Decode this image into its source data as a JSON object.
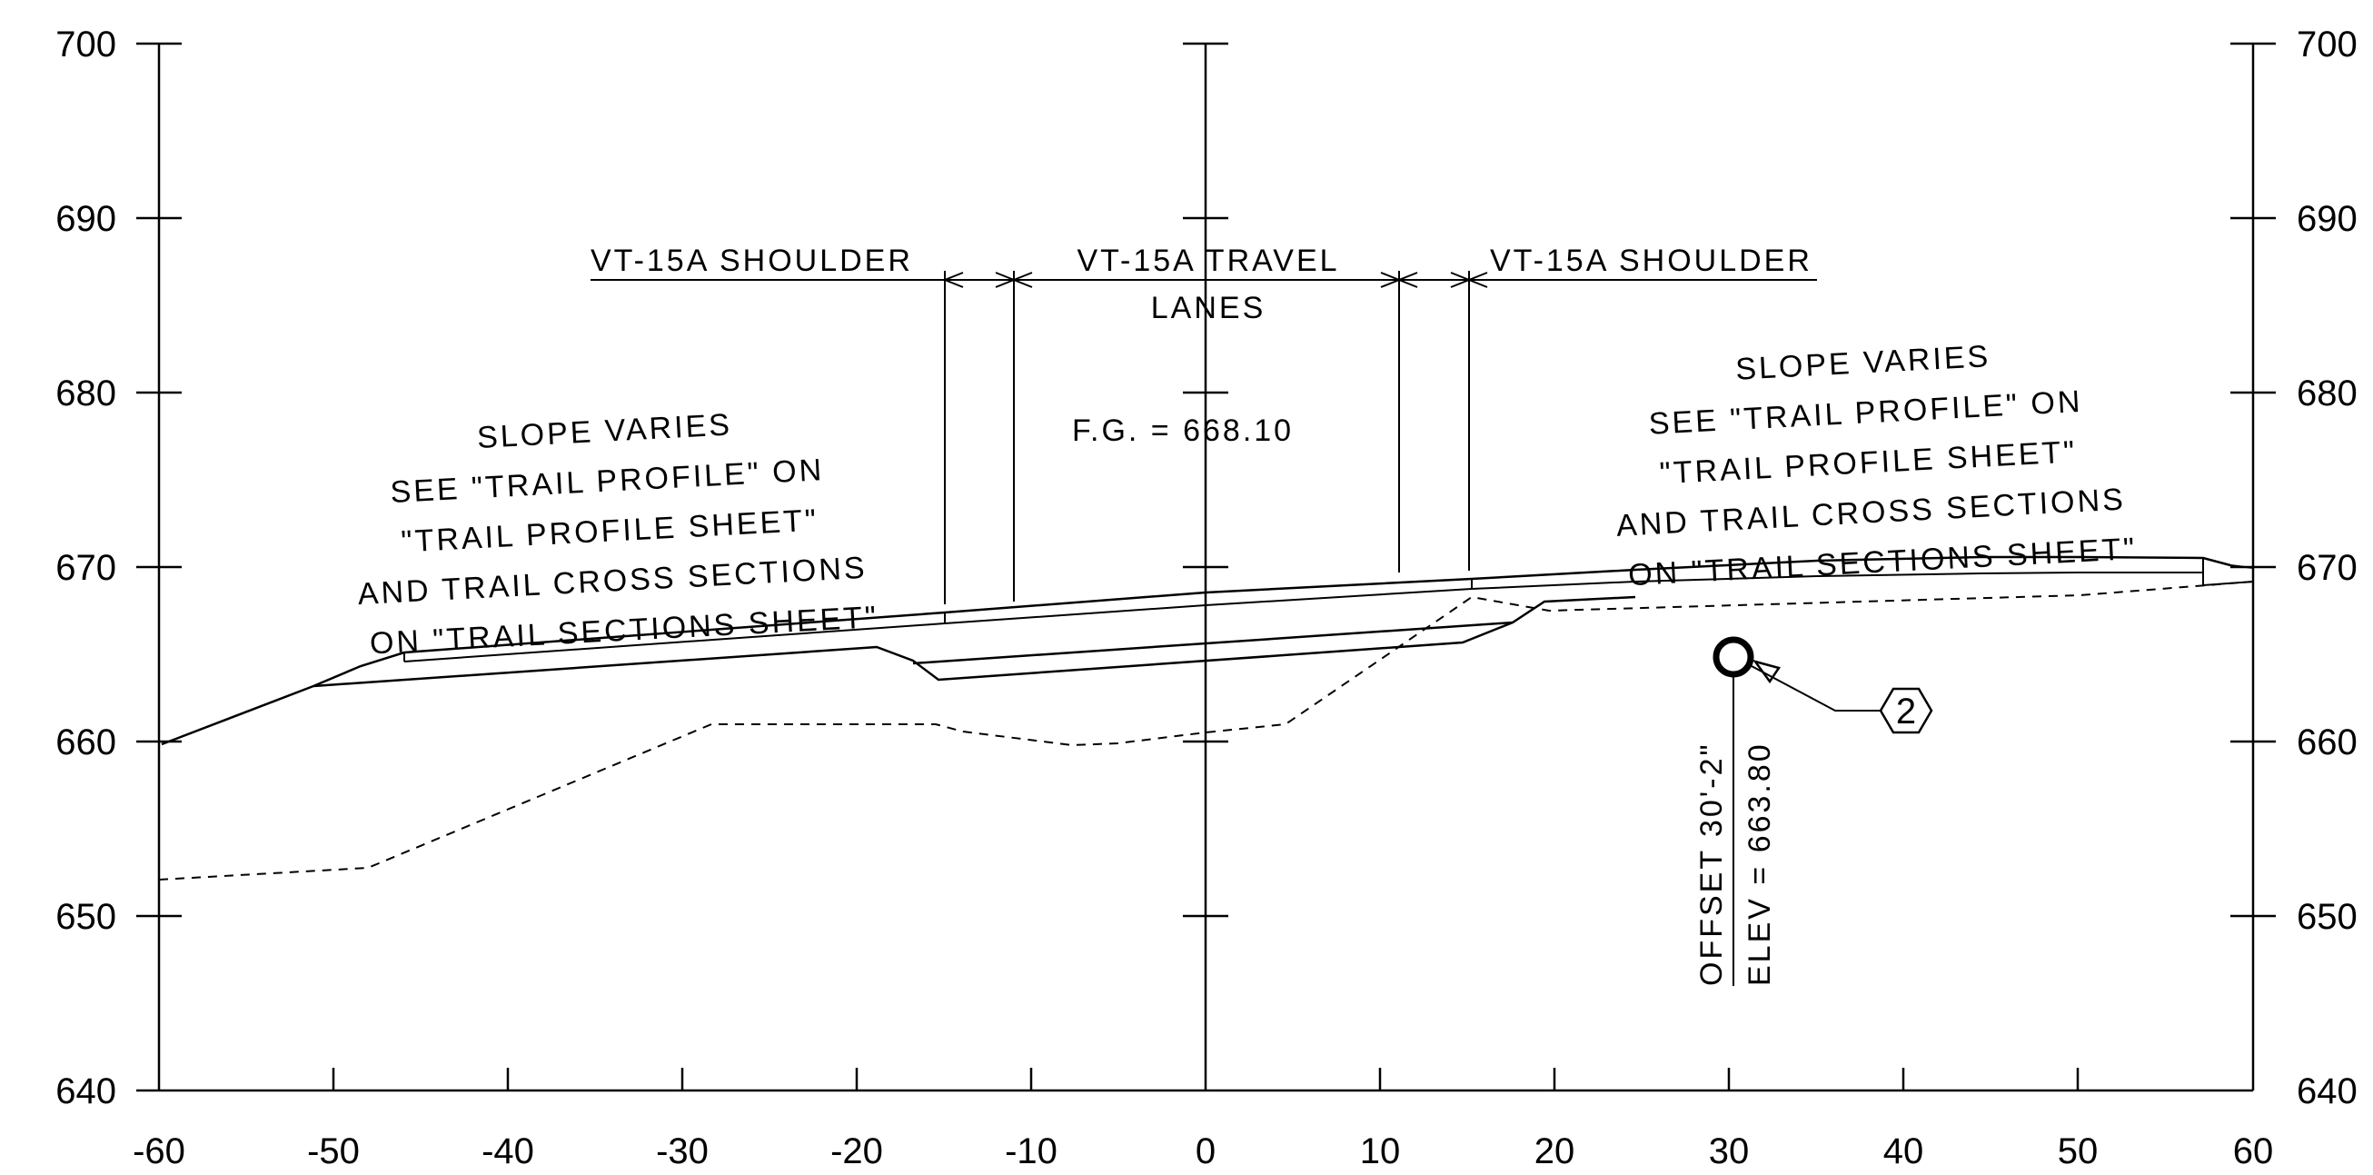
{
  "y_ticks": [
    "700",
    "690",
    "680",
    "670",
    "660",
    "650",
    "640"
  ],
  "x_ticks": [
    "-60",
    "-50",
    "-40",
    "-30",
    "-20",
    "-10",
    "0",
    "10",
    "20",
    "30",
    "40",
    "50",
    "60"
  ],
  "labels": {
    "shoulder_left": "VT-15A SHOULDER",
    "travel_lanes_line1": "VT-15A TRAVEL",
    "travel_lanes_line2": "LANES",
    "shoulder_right": "VT-15A SHOULDER",
    "finished_grade": "F.G. = 668.10"
  },
  "slope_note_left": [
    "SLOPE VARIES",
    "SEE \"TRAIL PROFILE\" ON",
    "\"TRAIL PROFILE SHEET\"",
    "AND TRAIL CROSS SECTIONS",
    "ON \"TRAIL SECTIONS SHEET\""
  ],
  "slope_note_right": [
    "SLOPE VARIES",
    "SEE \"TRAIL PROFILE\" ON",
    "\"TRAIL PROFILE SHEET\"",
    "AND TRAIL CROSS SECTIONS",
    "ON \"TRAIL SECTIONS SHEET\""
  ],
  "point": {
    "offset_label": "OFFSET 30'-2\"",
    "elev_label": "ELEV = 663.80",
    "callout": "2"
  }
}
